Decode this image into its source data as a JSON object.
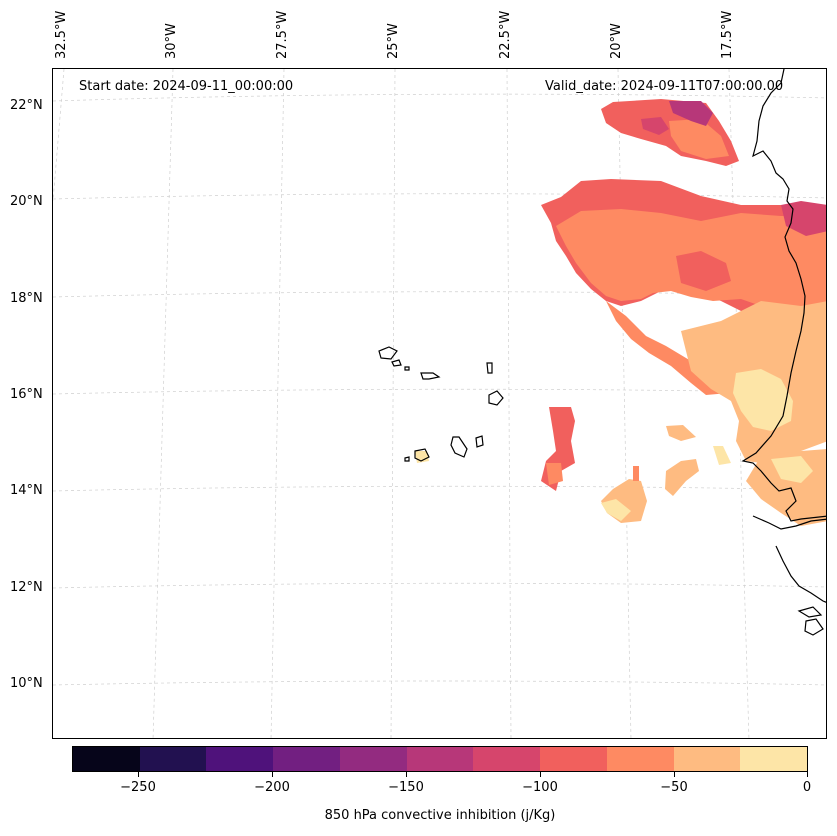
{
  "map": {
    "start_date": "Start date: 2024-09-11_00:00:00",
    "valid_date": "Valid_date: 2024-09-11T07:00:00.00",
    "longitude_labels": [
      "32.5°W",
      "30°W",
      "27.5°W",
      "25°W",
      "22.5°W",
      "20°W",
      "17.5°W"
    ],
    "latitude_labels": [
      "22°N",
      "20°N",
      "18°N",
      "16°N",
      "14°N",
      "12°N",
      "10°N"
    ]
  },
  "colorbar": {
    "title": "850 hPa convective inhibition (j/Kg)",
    "tick_labels": [
      "−250",
      "−200",
      "−150",
      "−100",
      "−50",
      "0"
    ],
    "colors": [
      "#06051a",
      "#221150",
      "#4f127b",
      "#721f81",
      "#932b80",
      "#b73779",
      "#d6456c",
      "#f1605d",
      "#fe8a62",
      "#febb81",
      "#fde5a7"
    ]
  }
}
